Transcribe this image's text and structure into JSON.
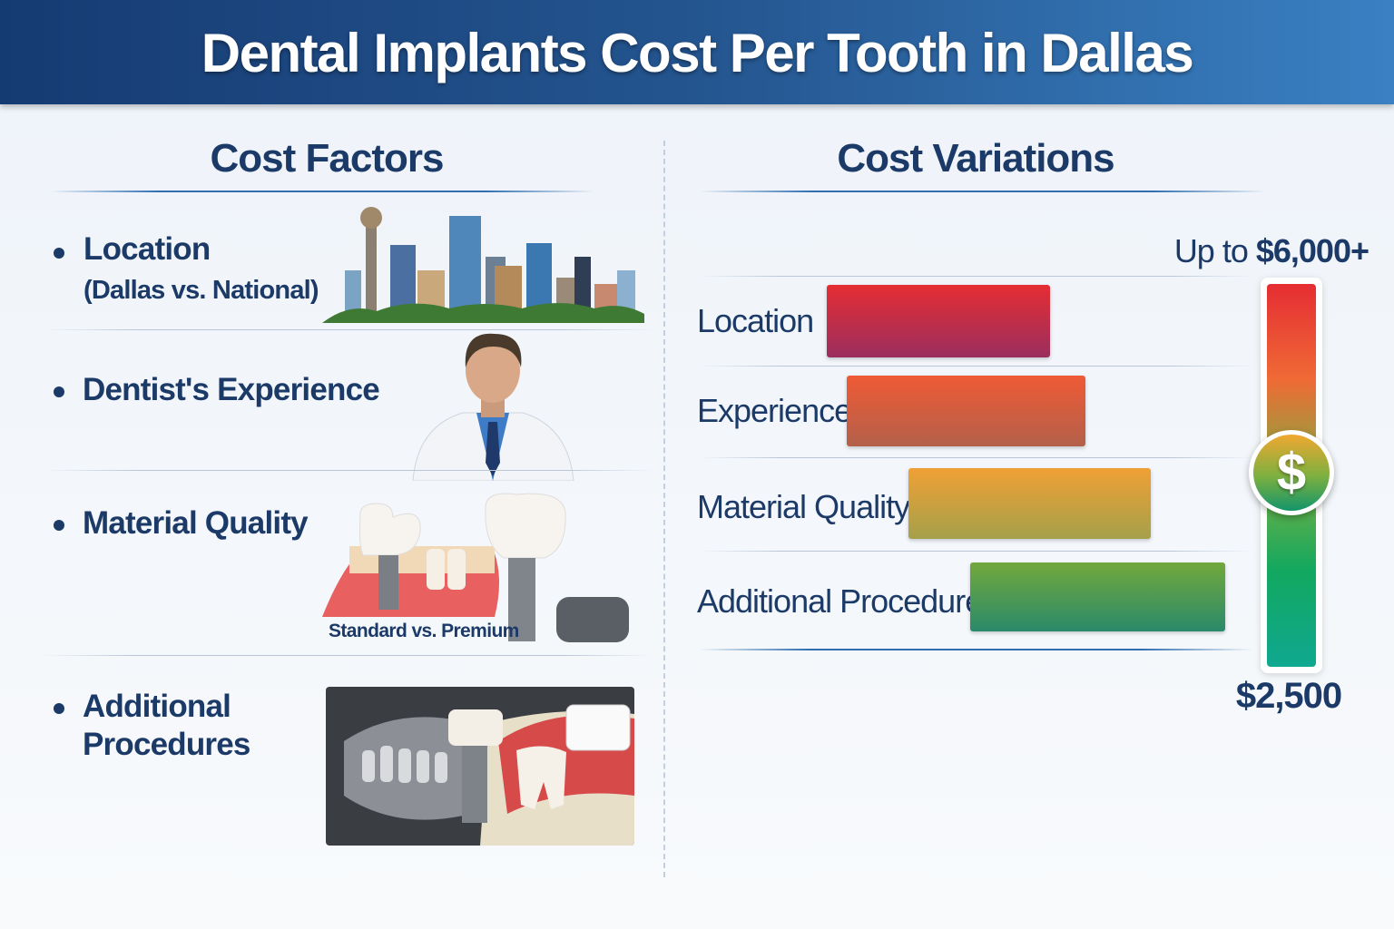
{
  "header": {
    "title": "Dental Implants Cost Per Tooth in Dallas"
  },
  "cost_factors": {
    "heading": "Cost Factors",
    "items": [
      {
        "label": "Location",
        "sub": "(Dallas vs. National)",
        "image": "dallas-skyline"
      },
      {
        "label": "Dentist's Experience",
        "image": "dentist-portrait"
      },
      {
        "label": "Material Quality",
        "image": "dental-implants",
        "caption": "Standard vs. Premium"
      },
      {
        "label": "Additional",
        "label2": "Procedures",
        "image": "xray-bone-graft"
      }
    ]
  },
  "cost_variations": {
    "heading": "Cost Variations",
    "max_label_prefix": "Up to ",
    "max_label_value": "$6,000+",
    "min_label": "$2,500",
    "gauge_icon": "dollar-coin",
    "bars": [
      {
        "label": "Location",
        "color_top": "#e52d33",
        "color_bottom": "#9b2e5e"
      },
      {
        "label": "Experience",
        "color_top": "#ef5a35",
        "color_bottom": "#b3604a"
      },
      {
        "label": "Material Quality",
        "color_top": "#f0a035",
        "color_bottom": "#a5a04a"
      },
      {
        "label": "Additional Procedures",
        "color_top": "#72a83c",
        "color_bottom": "#2a8a6a"
      }
    ],
    "gauge_colors": [
      "#e52d33",
      "#ef6a35",
      "#7cb040",
      "#12a860",
      "#10a890"
    ]
  }
}
